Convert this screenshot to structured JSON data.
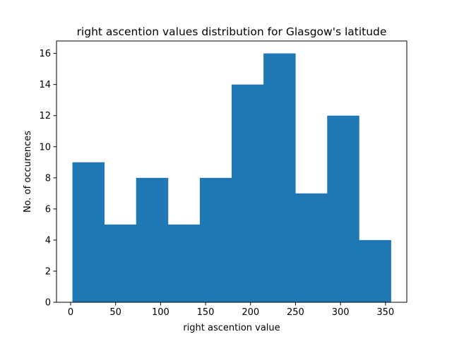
{
  "chart_data": {
    "type": "bar",
    "title": "right ascention values distribution for Glasgow's latitude",
    "xlabel": "right ascention value",
    "ylabel": "No. of occurences",
    "bin_edges": [
      2,
      37.4,
      72.8,
      108.2,
      143.6,
      179,
      214.4,
      249.8,
      285.2,
      320.6,
      356
    ],
    "values": [
      9,
      5,
      8,
      5,
      8,
      14,
      16,
      7,
      12,
      4
    ],
    "xlim": [
      -15.7,
      373.7
    ],
    "ylim": [
      0,
      16.8
    ],
    "xticks": [
      0,
      50,
      100,
      150,
      200,
      250,
      300,
      350
    ],
    "yticks": [
      0,
      2,
      4,
      6,
      8,
      10,
      12,
      14,
      16
    ],
    "bar_color": "#1f77b4",
    "grid": false
  }
}
